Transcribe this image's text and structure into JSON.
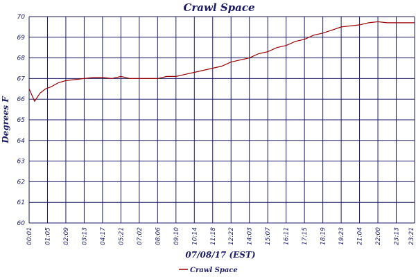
{
  "chart_data": {
    "type": "line",
    "title": "Crawl Space",
    "xlabel": "07/08/17 (EST)",
    "ylabel": "Degrees F",
    "ylim": [
      60,
      70
    ],
    "yticks": [
      "60",
      "61",
      "62",
      "63",
      "64",
      "65",
      "66",
      "67",
      "68",
      "69",
      "70"
    ],
    "xticks": [
      "00:01",
      "01:05",
      "02:09",
      "03:13",
      "04:17",
      "05:21",
      "07:02",
      "08:06",
      "09:10",
      "10:14",
      "11:18",
      "12:22",
      "14:03",
      "15:07",
      "16:11",
      "17:15",
      "18:19",
      "19:23",
      "21:04",
      "22:00",
      "23:13",
      "23:21"
    ],
    "grid": true,
    "legend_position": "bottom-center",
    "colors": {
      "series": "#990000",
      "grid": "#1a1a66",
      "text": "#1a1a66"
    },
    "series": [
      {
        "name": "Crawl Space",
        "x": [
          0,
          0.3,
          0.6,
          0.9,
          1.2,
          1.6,
          2.0,
          2.5,
          3.0,
          3.5,
          4.0,
          4.5,
          5.0,
          5.5,
          6.0,
          6.5,
          7.0,
          7.5,
          8.0,
          8.5,
          9.0,
          9.5,
          10.0,
          10.5,
          11.0,
          11.5,
          12.0,
          12.5,
          13.0,
          13.5,
          14.0,
          14.5,
          15.0,
          15.5,
          16.0,
          16.5,
          17.0,
          17.5,
          18.0,
          18.5,
          19.0,
          19.5,
          20.0,
          20.5,
          21.0
        ],
        "values": [
          66.5,
          65.9,
          66.3,
          66.5,
          66.6,
          66.8,
          66.9,
          66.95,
          67.0,
          67.05,
          67.05,
          67.0,
          67.1,
          67.0,
          67.0,
          67.0,
          67.0,
          67.1,
          67.1,
          67.2,
          67.3,
          67.4,
          67.5,
          67.6,
          67.8,
          67.9,
          68.0,
          68.2,
          68.3,
          68.5,
          68.6,
          68.8,
          68.9,
          69.1,
          69.2,
          69.35,
          69.5,
          69.55,
          69.6,
          69.7,
          69.75,
          69.7,
          69.7,
          69.7,
          69.7
        ]
      }
    ]
  }
}
